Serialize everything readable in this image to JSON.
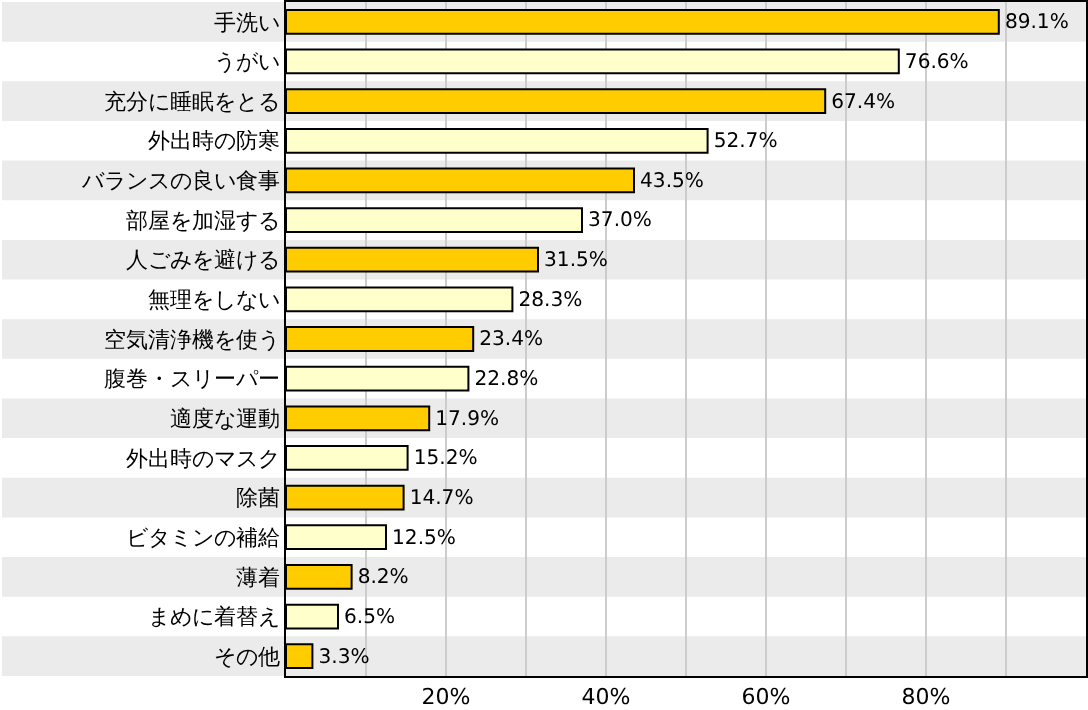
{
  "chart_data": {
    "type": "bar",
    "orientation": "horizontal",
    "categories": [
      "手洗い",
      "うがい",
      "充分に睡眠をとる",
      "外出時の防寒",
      "バランスの良い食事",
      "部屋を加湿する",
      "人ごみを避ける",
      "無理をしない",
      "空気清浄機を使う",
      "腹巻・スリーパー",
      "適度な運動",
      "外出時のマスク",
      "除菌",
      "ビタミンの補給",
      "薄着",
      "まめに着替え",
      "その他"
    ],
    "values": [
      89.1,
      76.6,
      67.4,
      52.7,
      43.5,
      37.0,
      31.5,
      28.3,
      23.4,
      22.8,
      17.9,
      15.2,
      14.7,
      12.5,
      8.2,
      6.5,
      3.3
    ],
    "colors": [
      "#ffcc00",
      "#ffffcc",
      "#ffcc00",
      "#ffffcc",
      "#ffcc00",
      "#ffffcc",
      "#ffcc00",
      "#ffffcc",
      "#ffcc00",
      "#ffffcc",
      "#ffcc00",
      "#ffffcc",
      "#ffcc00",
      "#ffffcc",
      "#ffcc00",
      "#ffffcc",
      "#ffcc00"
    ],
    "value_labels": [
      "89.1%",
      "76.6%",
      "67.4%",
      "52.7%",
      "43.5%",
      "37.0%",
      "31.5%",
      "28.3%",
      "23.4%",
      "22.8%",
      "17.9%",
      "15.2%",
      "14.7%",
      "12.5%",
      "8.2%",
      "6.5%",
      "3.3%"
    ],
    "xlim": [
      0,
      100
    ],
    "xticks": [
      {
        "value": 10,
        "label": null
      },
      {
        "value": 20,
        "label": "20%"
      },
      {
        "value": 30,
        "label": null
      },
      {
        "value": 40,
        "label": "40%"
      },
      {
        "value": 50,
        "label": null
      },
      {
        "value": 60,
        "label": "60%"
      },
      {
        "value": 70,
        "label": null
      },
      {
        "value": 80,
        "label": "80%"
      },
      {
        "value": 90,
        "label": null
      }
    ],
    "grid": "x"
  }
}
